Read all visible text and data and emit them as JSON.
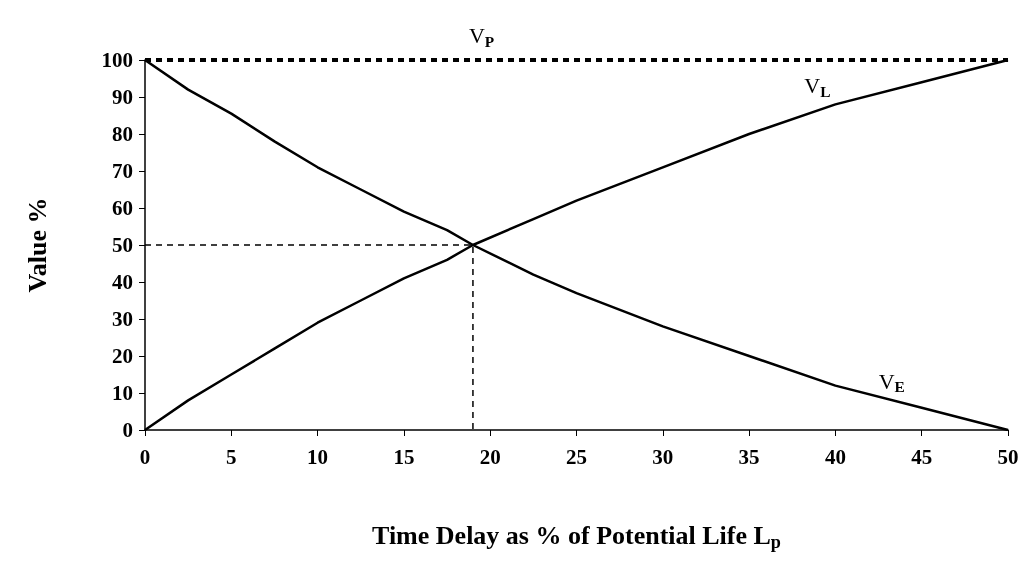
{
  "chart_data": {
    "type": "line",
    "xlabel": "Time Delay as % of Potential Life L$_{p}$",
    "ylabel": "Value %",
    "xlim": [
      0,
      50
    ],
    "ylim": [
      0,
      100
    ],
    "xticks": [
      0,
      5,
      10,
      15,
      20,
      25,
      30,
      35,
      40,
      45,
      50
    ],
    "yticks": [
      0,
      10,
      20,
      30,
      40,
      50,
      60,
      70,
      80,
      90,
      100
    ],
    "grid": false,
    "legend": false,
    "marker": "none",
    "series": [
      {
        "name": "V$_{P}$",
        "color": "#000000",
        "line_style": "dashed",
        "x": [
          0,
          50
        ],
        "values": [
          100,
          100
        ]
      },
      {
        "name": "V$_{L}$",
        "color": "#000000",
        "line_style": "solid",
        "x": [
          0,
          2.5,
          5,
          7.5,
          10,
          12.5,
          15,
          17.5,
          19,
          22.5,
          25,
          30,
          35,
          40,
          45,
          50
        ],
        "values": [
          0,
          8,
          15,
          22,
          29,
          35,
          41,
          46,
          50,
          57,
          62,
          71,
          80,
          88,
          94,
          100
        ]
      },
      {
        "name": "V$_{E}$",
        "color": "#000000",
        "line_style": "solid",
        "x": [
          0,
          2.5,
          5,
          7.5,
          10,
          12.5,
          15,
          17.5,
          19,
          22.5,
          25,
          30,
          35,
          40,
          45,
          50
        ],
        "values": [
          100,
          92,
          85.5,
          78,
          71,
          65,
          59,
          54,
          50,
          42,
          37,
          28,
          20,
          12,
          6,
          0
        ]
      },
      {
        "color": "#000000",
        "line_style": "dashed",
        "x": [
          0,
          19,
          19
        ],
        "values": [
          50,
          50,
          0
        ]
      }
    ]
  }
}
